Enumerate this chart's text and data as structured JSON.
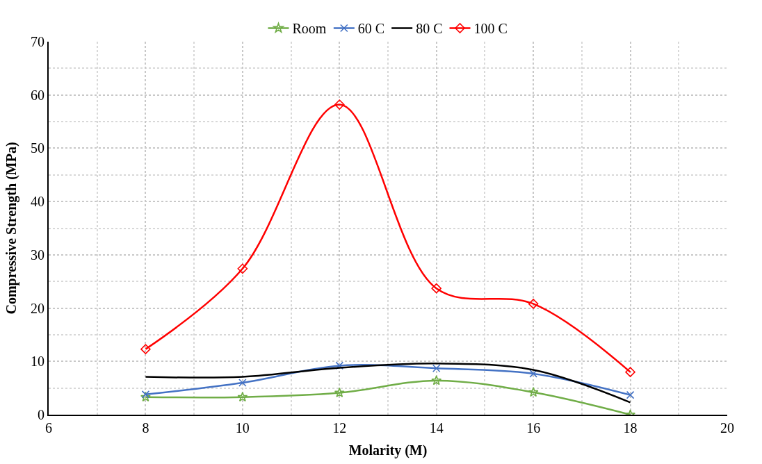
{
  "chart_data": {
    "type": "line",
    "xlabel": "Molarity (M)",
    "ylabel": "Compressive Strength (MPa)",
    "x": [
      8,
      10,
      12,
      14,
      16,
      18
    ],
    "series": [
      {
        "name": "Room",
        "color": "#70ad47",
        "marker": "star",
        "values": [
          3.3,
          3.3,
          4.1,
          6.4,
          4.2,
          0
        ]
      },
      {
        "name": "60 C",
        "color": "#4472c4",
        "marker": "cross",
        "values": [
          3.8,
          6.0,
          9.2,
          8.7,
          7.7,
          3.7
        ]
      },
      {
        "name": "80 C",
        "color": "#000000",
        "marker": "none",
        "values": [
          7.1,
          7.1,
          8.8,
          9.6,
          8.4,
          2.3
        ]
      },
      {
        "name": "100 C",
        "color": "#ff0000",
        "marker": "diamond",
        "values": [
          12.3,
          27.4,
          58.2,
          23.7,
          20.8,
          8.0
        ]
      }
    ],
    "xlim": [
      6,
      20
    ],
    "xticks": [
      6,
      8,
      10,
      12,
      14,
      16,
      18,
      20
    ],
    "ylim": [
      0,
      70
    ],
    "yticks": [
      0,
      10,
      20,
      30,
      40,
      50,
      60,
      70
    ],
    "grid": true,
    "legend": "top",
    "line_style": "solid"
  }
}
